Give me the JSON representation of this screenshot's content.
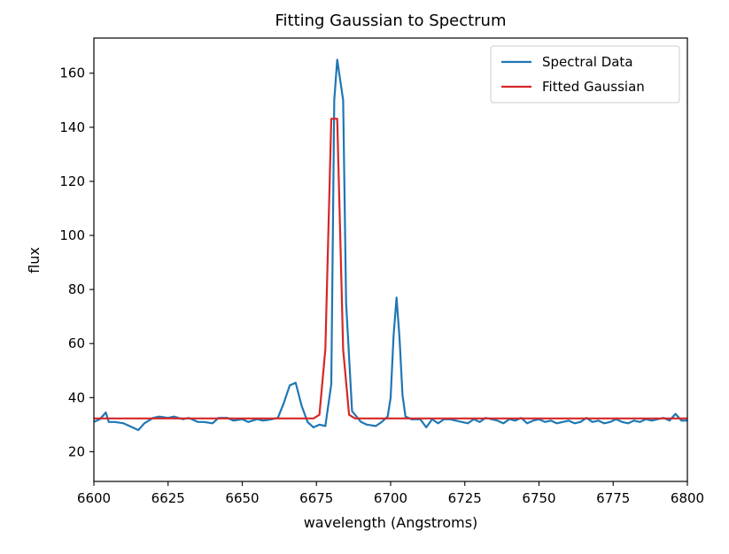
{
  "chart_data": {
    "type": "line",
    "title": "Fitting Gaussian to Spectrum",
    "xlabel": "wavelength (Angstroms)",
    "ylabel": "flux",
    "xlim": [
      6600,
      6800
    ],
    "ylim": [
      9,
      173
    ],
    "x_ticks": [
      6600,
      6625,
      6650,
      6675,
      6700,
      6725,
      6750,
      6775,
      6800
    ],
    "y_ticks": [
      20,
      40,
      60,
      80,
      100,
      120,
      140,
      160
    ],
    "grid": false,
    "legend_position": "top-right",
    "colors": {
      "spectral": "#1f77b4",
      "gaussian": "#d62728"
    },
    "series": [
      {
        "name": "Spectral Data",
        "color": "#1f77b4",
        "x": [
          6600,
          6602,
          6604,
          6605,
          6607,
          6610,
          6612,
          6615,
          6617,
          6620,
          6622,
          6625,
          6627,
          6630,
          6632,
          6635,
          6637,
          6640,
          6642,
          6645,
          6647,
          6650,
          6652,
          6655,
          6657,
          6660,
          6662,
          6664,
          6666,
          6668,
          6670,
          6672,
          6674,
          6676,
          6678,
          6680,
          6681,
          6682,
          6684,
          6685,
          6687,
          6690,
          6692,
          6695,
          6697,
          6699,
          6700,
          6701,
          6702,
          6703,
          6704,
          6705,
          6707,
          6710,
          6712,
          6714,
          6716,
          6718,
          6720,
          6722,
          6724,
          6726,
          6728,
          6730,
          6732,
          6734,
          6736,
          6738,
          6740,
          6742,
          6744,
          6746,
          6748,
          6750,
          6752,
          6754,
          6756,
          6758,
          6760,
          6762,
          6764,
          6766,
          6768,
          6770,
          6772,
          6774,
          6776,
          6778,
          6780,
          6782,
          6784,
          6786,
          6788,
          6790,
          6792,
          6794,
          6796,
          6798,
          6800
        ],
        "values": [
          31,
          32,
          34.5,
          31,
          31,
          30.5,
          29.5,
          28,
          30.5,
          32.5,
          33,
          32.5,
          33,
          32,
          32.5,
          31,
          31,
          30.5,
          32.5,
          32.5,
          31.5,
          32,
          31,
          32,
          31.5,
          32,
          32.5,
          38,
          44.5,
          45.5,
          37,
          31,
          29,
          30,
          29.5,
          45,
          150,
          165,
          150,
          75,
          35,
          31,
          30,
          29.5,
          31,
          33,
          40,
          63,
          77,
          62,
          41,
          33,
          32,
          32,
          29,
          32,
          30.5,
          32,
          32,
          31.5,
          31,
          30.5,
          32,
          31,
          32.5,
          32,
          31.5,
          30.5,
          32,
          31.5,
          32.5,
          30.5,
          31.5,
          32,
          31,
          31.5,
          30.5,
          31,
          31.5,
          30.5,
          31,
          32.5,
          31,
          31.5,
          30.5,
          31,
          32,
          31,
          30.5,
          31.5,
          31,
          32,
          31.5,
          32,
          32.5,
          31.5,
          34,
          31.5,
          31.5
        ]
      },
      {
        "name": "Fitted Gaussian",
        "color": "#d62728",
        "baseline": 32.3,
        "amplitude": 133.2,
        "center": 6681,
        "sigma": 1.65
      }
    ]
  }
}
